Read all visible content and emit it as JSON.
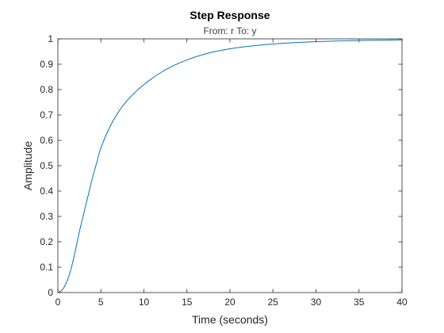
{
  "chart_data": {
    "type": "line",
    "title": "Step Response",
    "subtitle": "From: r  To: y",
    "xlabel": "Time (seconds)",
    "ylabel": "Amplitude",
    "xlim": [
      0,
      40
    ],
    "ylim": [
      0,
      1
    ],
    "x_ticks": [
      0,
      5,
      10,
      15,
      20,
      25,
      30,
      35,
      40
    ],
    "y_ticks": [
      0,
      0.1,
      0.2,
      0.3,
      0.4,
      0.5,
      0.6,
      0.7,
      0.8,
      0.9,
      1
    ],
    "x_tick_labels": [
      "0",
      "5",
      "10",
      "15",
      "20",
      "25",
      "30",
      "35",
      "40"
    ],
    "y_tick_labels": [
      "0",
      "0.1",
      "0.2",
      "0.3",
      "0.4",
      "0.5",
      "0.6",
      "0.7",
      "0.8",
      "0.9",
      "1"
    ],
    "grid": false,
    "series": [
      {
        "color": "#0072BD",
        "x": [
          0,
          0.5,
          1,
          1.5,
          2,
          2.5,
          3,
          3.5,
          4,
          4.5,
          5,
          6,
          7,
          8,
          9,
          10,
          11,
          12,
          13,
          14,
          15,
          16,
          17,
          18,
          20,
          22,
          24,
          26,
          28,
          30,
          32,
          34,
          36,
          38,
          40
        ],
        "y": [
          0,
          0.01,
          0.04,
          0.09,
          0.16,
          0.24,
          0.31,
          0.38,
          0.45,
          0.51,
          0.57,
          0.65,
          0.71,
          0.755,
          0.79,
          0.82,
          0.845,
          0.868,
          0.887,
          0.903,
          0.917,
          0.929,
          0.939,
          0.948,
          0.961,
          0.97,
          0.977,
          0.982,
          0.986,
          0.989,
          0.991,
          0.993,
          0.994,
          0.995,
          0.996
        ]
      }
    ]
  }
}
